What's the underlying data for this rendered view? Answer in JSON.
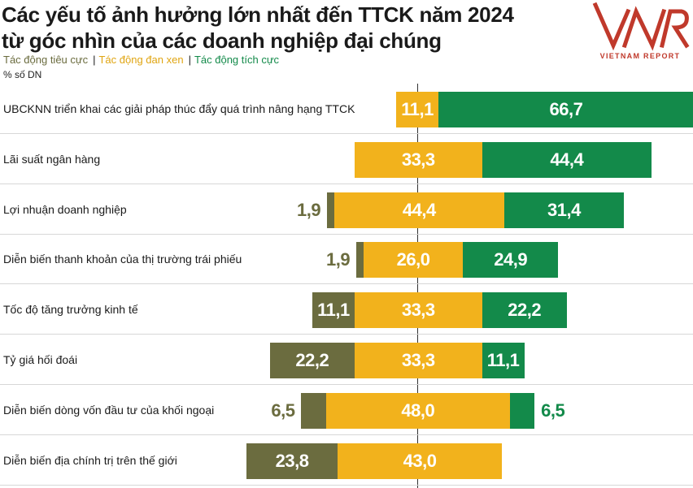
{
  "header": {
    "title_line1": "Các yếu tố ảnh hưởng lớn nhất đến TTCK năm 2024",
    "title_line2": "từ góc nhìn của các doanh nghiệp đại chúng",
    "unit": "% số DN"
  },
  "legend": [
    {
      "label": "Tác động tiêu cực",
      "color": "#6b6c3f"
    },
    {
      "label": "Tác động đan xen",
      "color": "#f2b21c"
    },
    {
      "label": "Tác động tích cực",
      "color": "#138a4a"
    }
  ],
  "logo": {
    "mark": "VNR",
    "subtitle": "VIETNAM REPORT",
    "color": "#c0392b"
  },
  "colors": {
    "negative": "#6b6c3f",
    "mixed": "#f2b21c",
    "positive": "#138a4a"
  },
  "chart_data": {
    "type": "bar",
    "orientation": "horizontal",
    "stacked": true,
    "categories": [
      "UBCKNN triển khai các giải pháp thúc đẩy quá trình nâng hạng TTCK",
      "Lãi suất ngân hàng",
      "Lợi nhuận doanh nghiệp",
      "Diễn biến thanh khoản của thị trường trái phiếu",
      "Tốc độ tăng trưởng kinh tế",
      "Tỷ giá hối đoái",
      "Diễn biến dòng vốn đầu tư của khối ngoại",
      "Diễn biến địa chính trị trên thế giới"
    ],
    "series": [
      {
        "name": "Tác động tiêu cực",
        "values": [
          null,
          null,
          1.9,
          1.9,
          11.1,
          22.2,
          6.5,
          23.8
        ],
        "labels": [
          "",
          "",
          "1,9",
          "1,9",
          "11,1",
          "22,2",
          "6,5",
          "23,8"
        ]
      },
      {
        "name": "Tác động đan xen",
        "values": [
          11.1,
          33.3,
          44.4,
          26.0,
          33.3,
          33.3,
          48.0,
          43.0
        ],
        "labels": [
          "11,1",
          "33,3",
          "44,4",
          "26,0",
          "33,3",
          "33,3",
          "48,0",
          "43,0"
        ]
      },
      {
        "name": "Tác động tích cực",
        "values": [
          66.7,
          44.4,
          31.4,
          24.9,
          22.2,
          11.1,
          6.5,
          null
        ],
        "labels": [
          "66,7",
          "44,4",
          "31,4",
          "24,9",
          "22,2",
          "11,1",
          "6,5",
          ""
        ]
      }
    ],
    "grid": false,
    "legend_position": "top-left"
  }
}
